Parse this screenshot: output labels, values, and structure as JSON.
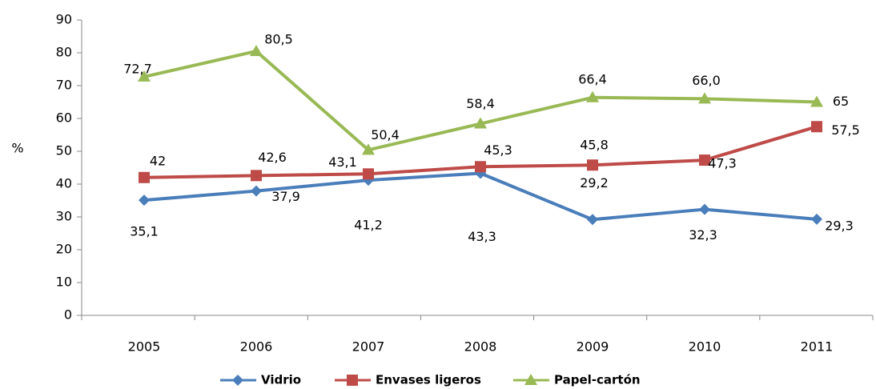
{
  "chart_data": {
    "type": "line",
    "categories": [
      "2005",
      "2006",
      "2007",
      "2008",
      "2009",
      "2010",
      "2011"
    ],
    "ylabel": "%",
    "ylim": [
      0,
      90
    ],
    "yticks": [
      0,
      10,
      20,
      30,
      40,
      50,
      60,
      70,
      80,
      90
    ],
    "grid": false,
    "legend": "bottom",
    "series": [
      {
        "name": "Vidrio",
        "color": "#4a7ebb",
        "marker": "diamond",
        "values": [
          35.1,
          37.9,
          41.2,
          43.3,
          29.2,
          32.3,
          29.3
        ],
        "value_labels": [
          "35,1",
          "37,9",
          "41,2",
          "43,3",
          "29,2",
          "32,3",
          "29,3"
        ]
      },
      {
        "name": "Envases ligeros",
        "color": "#be4b48",
        "marker": "square",
        "values": [
          42,
          42.6,
          43.1,
          45.3,
          45.8,
          47.3,
          57.5
        ],
        "value_labels": [
          "42",
          "42,6",
          "43,1",
          "45,3",
          "45,8",
          "47,3",
          "57,5"
        ]
      },
      {
        "name": "Papel-cartón",
        "color": "#98b954",
        "marker": "triangle",
        "values": [
          72.7,
          80.5,
          50.4,
          58.4,
          66.4,
          66.0,
          65
        ],
        "value_labels": [
          "72,7",
          "80,5",
          "50,4",
          "58,4",
          "66,4",
          "66,0",
          "65"
        ]
      }
    ]
  }
}
